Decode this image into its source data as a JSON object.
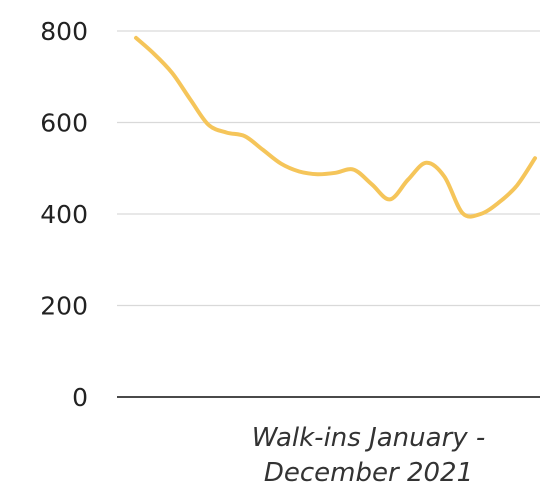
{
  "chart_data": {
    "type": "line",
    "title": "",
    "xlabel_lines": [
      "Walk-ins January -",
      "December 2021"
    ],
    "ylabel": "",
    "ylim": [
      0,
      800
    ],
    "yticks": [
      0,
      200,
      400,
      600,
      800
    ],
    "grid": true,
    "x": [
      0,
      0.5,
      1,
      1.5,
      2,
      2.5,
      3,
      3.5,
      4,
      4.5,
      5,
      5.5,
      6,
      6.5,
      7,
      7.5,
      8,
      8.5,
      9,
      9.5,
      10,
      10.5,
      11
    ],
    "series": [
      {
        "color": "#f5c55a",
        "values": [
          785,
          750,
          708,
          650,
          595,
          578,
          570,
          540,
          510,
          493,
          487,
          490,
          497,
          465,
          432,
          475,
          512,
          482,
          402,
          400,
          425,
          462,
          522
        ]
      }
    ]
  }
}
